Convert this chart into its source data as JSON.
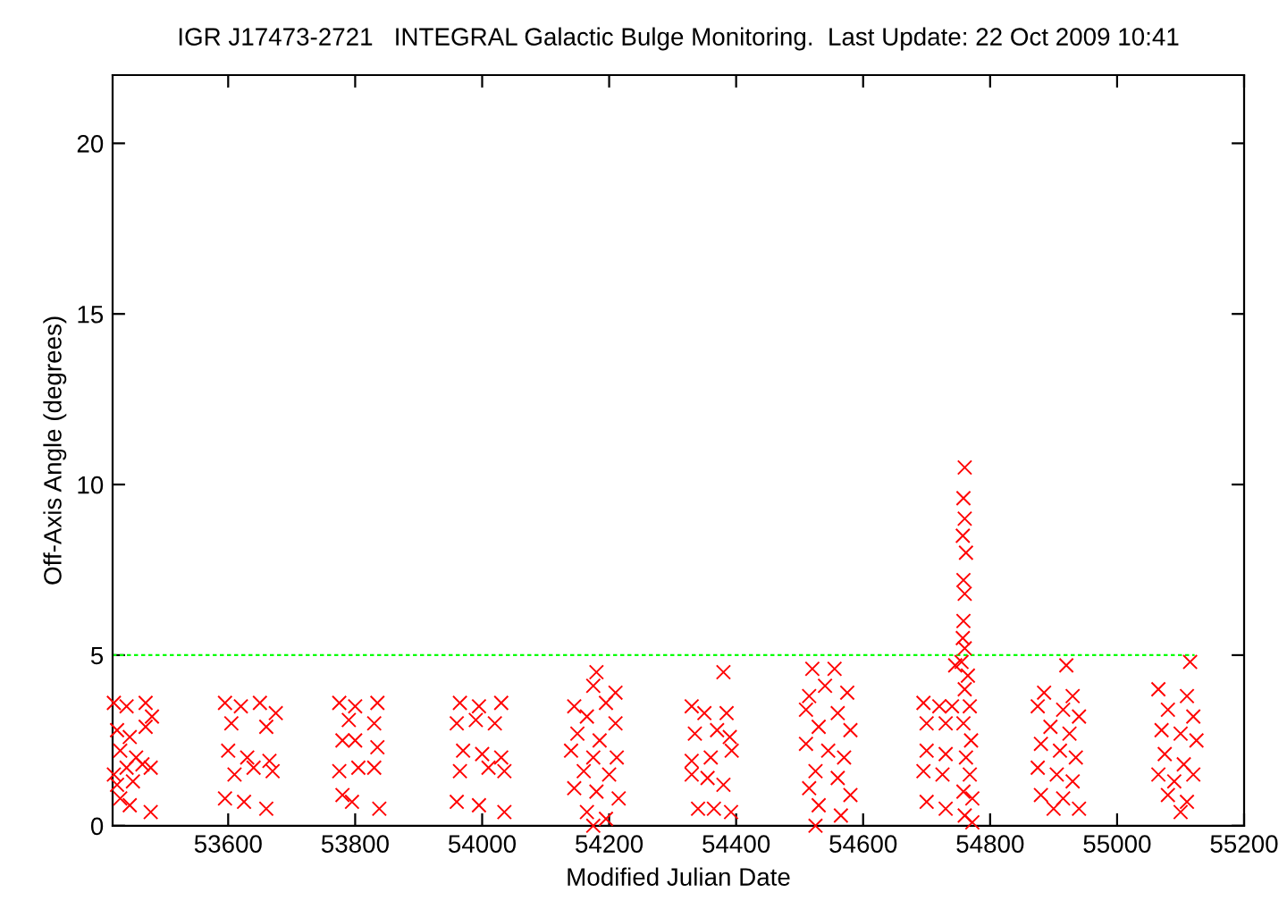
{
  "chart_data": {
    "type": "scatter",
    "title": "IGR J17473-2721   INTEGRAL Galactic Bulge Monitoring.  Last Update: 22 Oct 2009 10:41",
    "xlabel": "Modified Julian Date",
    "ylabel": "Off-Axis Angle (degrees)",
    "xlim": [
      53418,
      55200
    ],
    "xticks": [
      53600,
      53800,
      54000,
      54200,
      54400,
      54600,
      54800,
      55000,
      55200
    ],
    "ylim": [
      0,
      22
    ],
    "yticks": [
      0,
      5,
      10,
      15,
      20
    ],
    "grid": false,
    "legend": false,
    "marker": "cross",
    "series": [
      {
        "color": "#ff0000",
        "x": [
          53420,
          53440,
          53470,
          53480,
          53425,
          53445,
          53470,
          53430,
          53455,
          53478,
          53420,
          53440,
          53465,
          53425,
          53450,
          53430,
          53445,
          53478,
          53595,
          53620,
          53650,
          53675,
          53605,
          53660,
          53600,
          53630,
          53665,
          53610,
          53640,
          53670,
          53595,
          53625,
          53660,
          53775,
          53800,
          53835,
          53790,
          53830,
          53780,
          53800,
          53835,
          53775,
          53805,
          53830,
          53780,
          53795,
          53838,
          53965,
          53995,
          54030,
          53960,
          53990,
          54020,
          53970,
          54000,
          54030,
          53965,
          54010,
          54035,
          53960,
          53995,
          54035,
          54180,
          54175,
          54210,
          54145,
          54195,
          54165,
          54210,
          54150,
          54185,
          54140,
          54175,
          54212,
          54160,
          54200,
          54145,
          54180,
          54215,
          54165,
          54195,
          54175,
          54380,
          54330,
          54350,
          54385,
          54335,
          54370,
          54390,
          54330,
          54360,
          54393,
          54330,
          54355,
          54380,
          54340,
          54365,
          54392,
          54520,
          54555,
          54515,
          54540,
          54575,
          54510,
          54560,
          54530,
          54580,
          54510,
          54545,
          54570,
          54525,
          54560,
          54515,
          54580,
          54530,
          54565,
          54525,
          54695,
          54720,
          54740,
          54700,
          54730,
          54700,
          54730,
          54695,
          54725,
          54700,
          54730,
          54760,
          54758,
          54760,
          54757,
          54762,
          54758,
          54760,
          54758,
          54757,
          54760,
          54755,
          54765,
          54760,
          54768,
          54758,
          54770,
          54762,
          54768,
          54758,
          54772,
          54760,
          54772,
          54745,
          54920,
          54885,
          54930,
          54875,
          54915,
          54940,
          54895,
          54925,
          54880,
          54910,
          54935,
          54875,
          54905,
          54930,
          54880,
          54915,
          54940,
          54900,
          55115,
          55065,
          55110,
          55080,
          55120,
          55070,
          55100,
          55125,
          55075,
          55105,
          55065,
          55090,
          55120,
          55080,
          55110,
          55100
        ],
        "values": [
          3.6,
          3.5,
          3.6,
          3.2,
          2.8,
          2.6,
          2.9,
          2.2,
          2.0,
          1.7,
          1.5,
          1.7,
          1.8,
          1.2,
          1.3,
          0.8,
          0.6,
          0.4,
          3.6,
          3.5,
          3.6,
          3.3,
          3.0,
          2.9,
          2.2,
          2.0,
          1.9,
          1.5,
          1.7,
          1.6,
          0.8,
          0.7,
          0.5,
          3.6,
          3.5,
          3.6,
          3.1,
          3.0,
          2.5,
          2.5,
          2.3,
          1.6,
          1.7,
          1.7,
          0.9,
          0.7,
          0.5,
          3.6,
          3.5,
          3.6,
          3.0,
          3.1,
          3.0,
          2.2,
          2.1,
          2.0,
          1.6,
          1.7,
          1.6,
          0.7,
          0.6,
          0.4,
          4.5,
          4.1,
          3.9,
          3.5,
          3.6,
          3.2,
          3.0,
          2.7,
          2.5,
          2.2,
          2.0,
          2.0,
          1.6,
          1.5,
          1.1,
          1.0,
          0.8,
          0.4,
          0.2,
          0.0,
          4.5,
          3.5,
          3.3,
          3.3,
          2.7,
          2.8,
          2.6,
          1.9,
          2.0,
          2.2,
          1.5,
          1.4,
          1.2,
          0.5,
          0.5,
          0.4,
          4.6,
          4.6,
          3.8,
          4.1,
          3.9,
          3.4,
          3.3,
          2.9,
          2.8,
          2.4,
          2.2,
          2.0,
          1.6,
          1.4,
          1.1,
          0.9,
          0.6,
          0.3,
          0.0,
          3.6,
          3.5,
          3.5,
          3.0,
          3.0,
          2.2,
          2.1,
          1.6,
          1.5,
          0.7,
          0.5,
          10.5,
          9.6,
          9.0,
          8.5,
          8.0,
          7.2,
          6.8,
          6.0,
          5.5,
          5.2,
          4.8,
          4.4,
          4.0,
          3.5,
          3.0,
          2.5,
          2.0,
          1.5,
          1.0,
          0.8,
          0.3,
          0.1,
          4.7,
          4.7,
          3.9,
          3.8,
          3.5,
          3.4,
          3.2,
          2.9,
          2.7,
          2.4,
          2.2,
          2.0,
          1.7,
          1.5,
          1.3,
          0.9,
          0.8,
          0.5,
          0.5,
          4.8,
          4.0,
          3.8,
          3.4,
          3.2,
          2.8,
          2.7,
          2.5,
          2.1,
          1.8,
          1.5,
          1.3,
          1.5,
          0.9,
          0.7,
          0.4
        ]
      },
      {
        "type": "line",
        "color": "#00ff00",
        "line_style": "dashed",
        "marker": "none",
        "x": [
          53418,
          55122
        ],
        "values": [
          5,
          5
        ]
      }
    ]
  }
}
